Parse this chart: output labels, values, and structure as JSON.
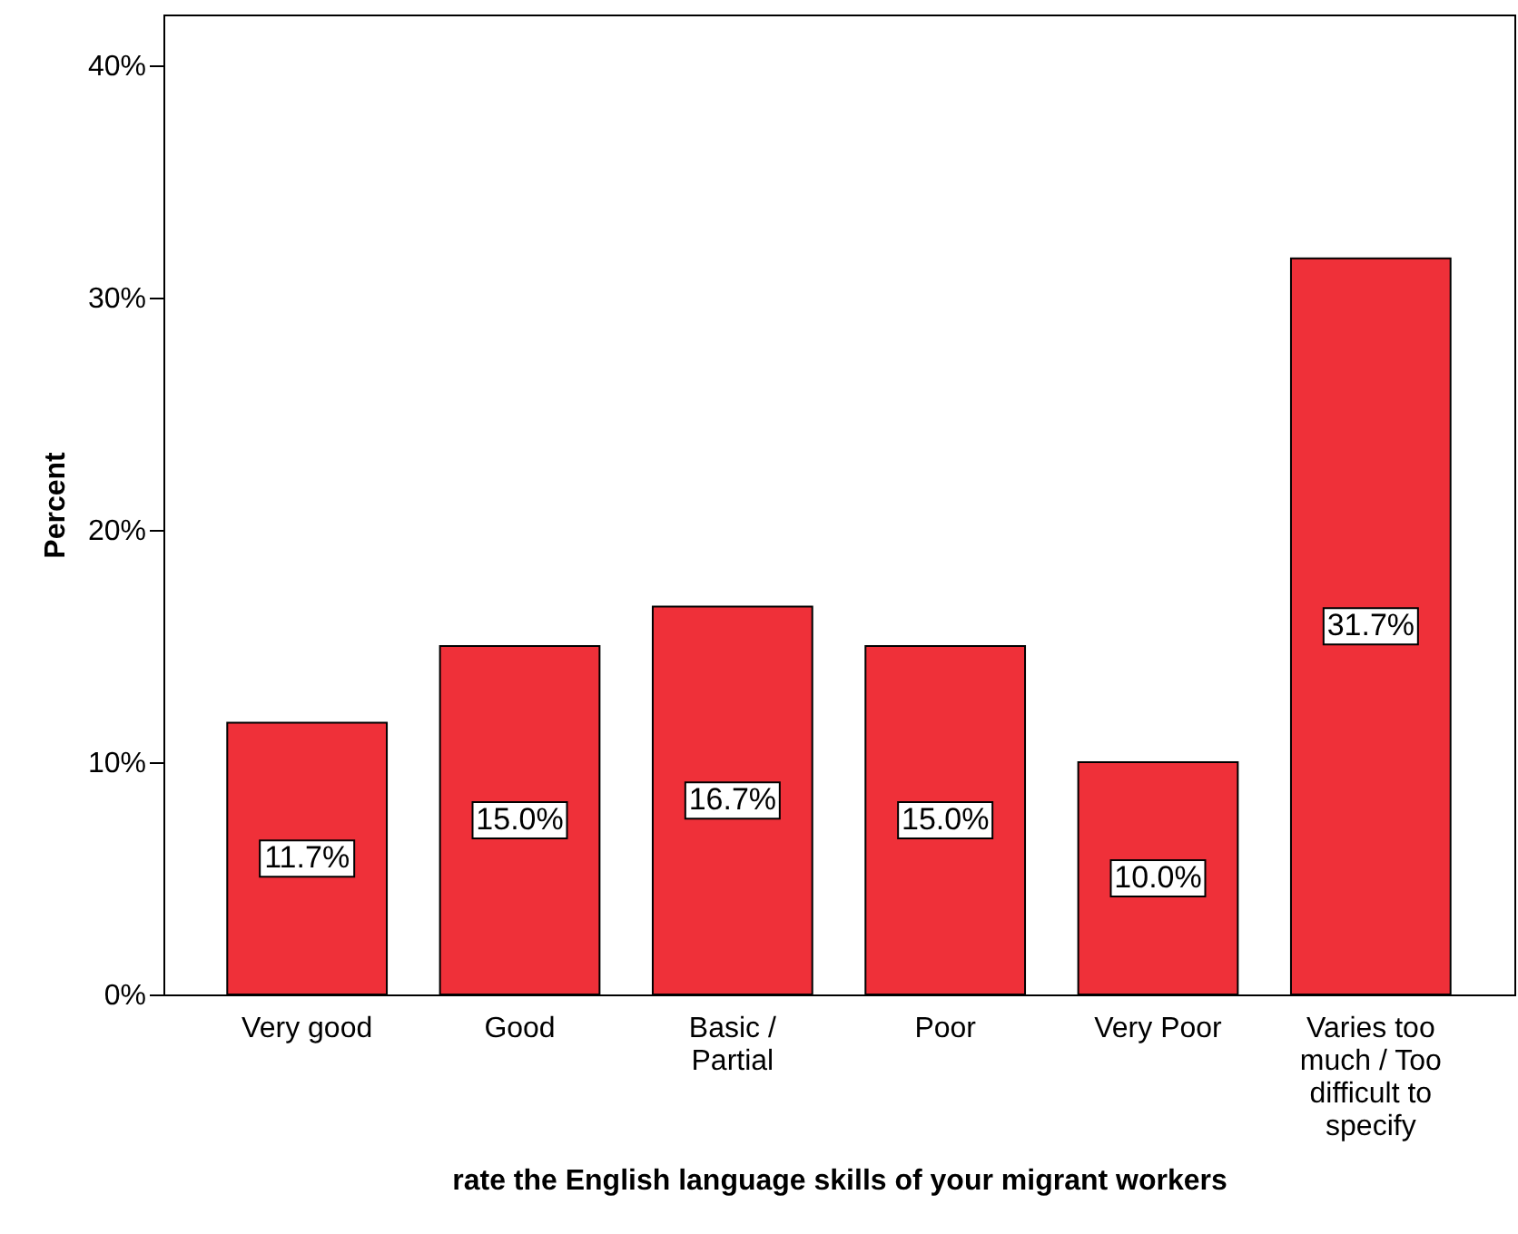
{
  "chart_data": {
    "type": "bar",
    "xlabel": "rate the English language skills of your migrant workers",
    "ylabel": "Percent",
    "categories": [
      "Very good",
      "Good",
      "Basic / Partial",
      "Poor",
      "Very Poor",
      "Varies too much / Too difficult to specify"
    ],
    "values": [
      11.7,
      15.0,
      16.7,
      15.0,
      10.0,
      31.7
    ],
    "value_labels": [
      "11.7%",
      "15.0%",
      "16.7%",
      "15.0%",
      "10.0%",
      "31.7%"
    ],
    "color": "#ef3039",
    "ylim": [
      0,
      42.2
    ],
    "yticks": [
      {
        "value": 0,
        "label": "0%"
      },
      {
        "value": 10,
        "label": "10%"
      },
      {
        "value": 20,
        "label": "20%"
      },
      {
        "value": 30,
        "label": "30%"
      },
      {
        "value": 40,
        "label": "40%"
      }
    ],
    "grid": false
  }
}
